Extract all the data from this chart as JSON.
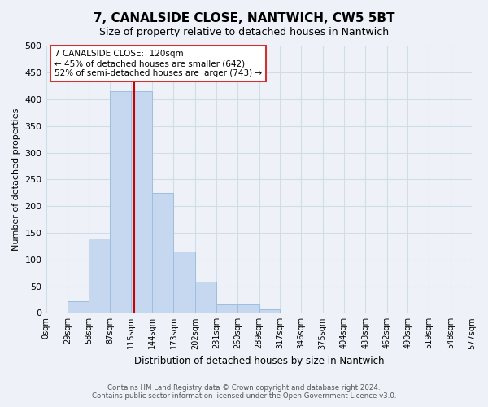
{
  "title": "7, CANALSIDE CLOSE, NANTWICH, CW5 5BT",
  "subtitle": "Size of property relative to detached houses in Nantwich",
  "xlabel": "Distribution of detached houses by size in Nantwich",
  "ylabel": "Number of detached properties",
  "bin_edges": [
    0,
    29,
    58,
    87,
    115,
    144,
    173,
    202,
    231,
    260,
    289,
    317,
    346,
    375,
    404,
    433,
    462,
    490,
    519,
    548,
    577
  ],
  "bin_heights": [
    0,
    22,
    140,
    415,
    415,
    225,
    115,
    58,
    15,
    15,
    7,
    0,
    0,
    0,
    0,
    0,
    1,
    0,
    0,
    1
  ],
  "bar_color": "#c5d8f0",
  "bar_edgecolor": "#a0bedd",
  "vline_x": 120,
  "vline_color": "#cc0000",
  "annotation_lines": [
    "7 CANALSIDE CLOSE:  120sqm",
    "← 45% of detached houses are smaller (642)",
    "52% of semi-detached houses are larger (743) →"
  ],
  "ylim": [
    0,
    500
  ],
  "yticks": [
    0,
    50,
    100,
    150,
    200,
    250,
    300,
    350,
    400,
    450,
    500
  ],
  "tick_labels": [
    "0sqm",
    "29sqm",
    "58sqm",
    "87sqm",
    "115sqm",
    "144sqm",
    "173sqm",
    "202sqm",
    "231sqm",
    "260sqm",
    "289sqm",
    "317sqm",
    "346sqm",
    "375sqm",
    "404sqm",
    "433sqm",
    "462sqm",
    "490sqm",
    "519sqm",
    "548sqm",
    "577sqm"
  ],
  "footer_line1": "Contains HM Land Registry data © Crown copyright and database right 2024.",
  "footer_line2": "Contains public sector information licensed under the Open Government Licence v3.0.",
  "grid_color": "#d0dce8",
  "background_color": "#eef2f8"
}
